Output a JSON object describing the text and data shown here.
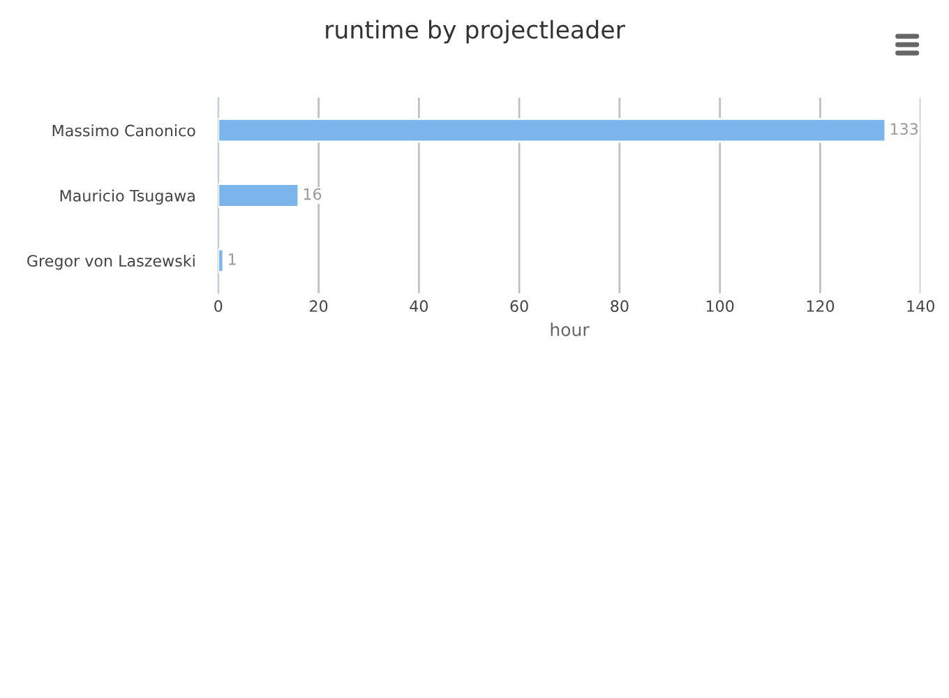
{
  "chart_data": {
    "type": "bar",
    "orientation": "horizontal",
    "title": "runtime by projectleader",
    "xlabel": "hour",
    "categories": [
      "Massimo Canonico",
      "Mauricio Tsugawa",
      "Gregor von Laszewski"
    ],
    "series": [
      {
        "color": "#7cb5ec",
        "values": [
          133,
          16,
          1
        ]
      }
    ],
    "xlim": [
      0,
      140
    ],
    "xticks": [
      0,
      20,
      40,
      60,
      80,
      100,
      120,
      140
    ],
    "grid": "x",
    "data_labels": true
  }
}
